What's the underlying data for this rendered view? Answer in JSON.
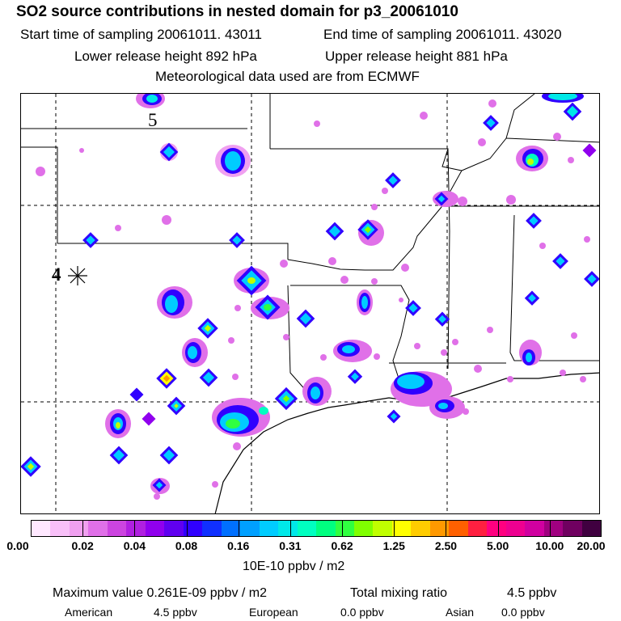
{
  "header": {
    "title": "SO2 source contributions in nested domain for p3_20061010",
    "start_label": "Start time of sampling 20061011. 43011",
    "end_label": "End time of sampling 20061011. 43020",
    "lower_label": "Lower release height  892 hPa",
    "upper_label": "Upper release height  881 hPa",
    "met_label": "Meteorological data used are from ECMWF"
  },
  "map": {
    "marker_5": "5",
    "marker_4": "4",
    "source_symbol": "asterisk"
  },
  "colorbar": {
    "colors": [
      "#ffe8ff",
      "#f8c0f8",
      "#f0a0f0",
      "#e070e8",
      "#cc44e0",
      "#b020e0",
      "#9000ee",
      "#6000f0",
      "#3000ff",
      "#1030ff",
      "#0070ff",
      "#00a0ff",
      "#00ccff",
      "#00e8e8",
      "#00ffc0",
      "#00ff80",
      "#30ff40",
      "#80ff00",
      "#c0ff00",
      "#ffff00",
      "#ffcc00",
      "#ff9900",
      "#ff6000",
      "#ff2040",
      "#ff0080",
      "#ee0090",
      "#d000a0",
      "#a00080",
      "#700060",
      "#400040"
    ],
    "ticks": [
      "0.00",
      "0.02",
      "0.04",
      "0.08",
      "0.16",
      "0.31",
      "0.62",
      "1.25",
      "2.50",
      "5.00",
      "10.00",
      "20.00"
    ],
    "units": "10E-10 ppbv / m2"
  },
  "footer": {
    "max_label": "Maximum value  0.261E-09 ppbv / m2",
    "total_label": "Total mixing ratio",
    "total_value": "4.5 ppbv",
    "american_label": "American",
    "american_value": "4.5 ppbv",
    "european_label": "European",
    "european_value": "0.0 ppbv",
    "asian_label": "Asian",
    "asian_value": "0.0 ppbv"
  }
}
